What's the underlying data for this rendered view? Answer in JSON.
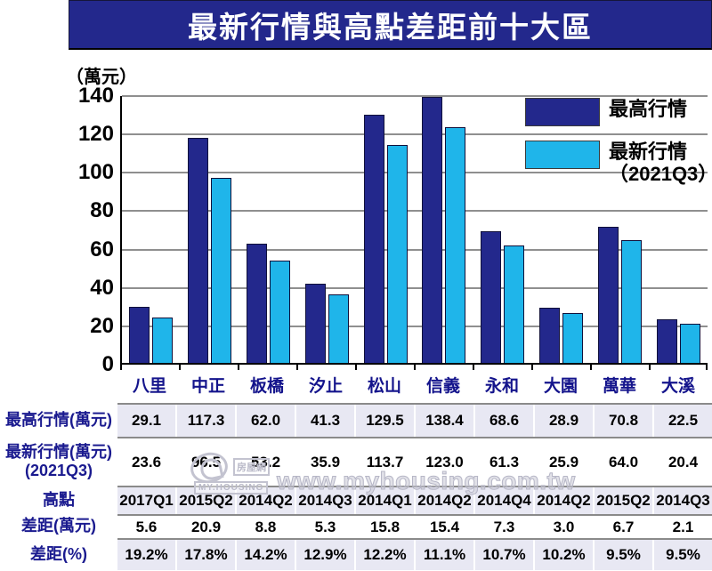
{
  "title": "最新行情與高點差距前十大區",
  "y_axis_unit": "（萬元）",
  "colors": {
    "banner": "#23288C",
    "series_high": "#23288C",
    "series_latest": "#1FB5EA",
    "table_shaded": "#E8E8F3",
    "grid": "#8f8f8f",
    "label_navy": "#1A1A8F"
  },
  "legend": {
    "items": [
      {
        "label": "最高行情",
        "sublabel": "",
        "color": "#23288C"
      },
      {
        "label": "最新行情",
        "sublabel": "（2021Q3）",
        "color": "#1FB5EA"
      }
    ]
  },
  "chart_data": {
    "type": "bar",
    "title": "最新行情與高點差距前十大區",
    "ylabel": "（萬元）",
    "categories": [
      "八里",
      "中正",
      "板橋",
      "汐止",
      "松山",
      "信義",
      "永和",
      "大園",
      "萬華",
      "大溪"
    ],
    "series": [
      {
        "name": "最高行情",
        "color": "#23288C",
        "values": [
          29.1,
          117.3,
          62.0,
          41.3,
          129.5,
          138.4,
          68.6,
          28.9,
          70.8,
          22.5
        ]
      },
      {
        "name": "最新行情（2021Q3）",
        "color": "#1FB5EA",
        "values": [
          23.6,
          96.5,
          53.2,
          35.9,
          113.7,
          123.0,
          61.3,
          25.9,
          64.0,
          20.4
        ]
      }
    ],
    "ylim": [
      0,
      140
    ],
    "yticks": [
      0,
      20,
      40,
      60,
      80,
      100,
      120,
      140
    ],
    "grid": true,
    "legend_position": "top-right"
  },
  "table": {
    "rows": [
      {
        "label": "最高行情(萬元)",
        "label2": "",
        "shaded": true,
        "height": 38,
        "values": [
          "29.1",
          "117.3",
          "62.0",
          "41.3",
          "129.5",
          "138.4",
          "68.6",
          "28.9",
          "70.8",
          "22.5"
        ]
      },
      {
        "label": "最新行情(萬元)",
        "label2": "(2021Q3)",
        "shaded": false,
        "height": 55,
        "values": [
          "23.6",
          "96.5",
          "53.2",
          "35.9",
          "113.7",
          "123.0",
          "61.3",
          "25.9",
          "64.0",
          "20.4"
        ]
      },
      {
        "label": "高點",
        "label2": "",
        "shaded": true,
        "height": 32,
        "values": [
          "2017Q1",
          "2015Q2",
          "2014Q2",
          "2014Q3",
          "2014Q1",
          "2014Q2",
          "2014Q4",
          "2014Q2",
          "2015Q2",
          "2014Q3"
        ]
      },
      {
        "label": "差距(萬元)",
        "label2": "",
        "shaded": false,
        "height": 27,
        "values": [
          "5.6",
          "20.9",
          "8.8",
          "5.3",
          "15.8",
          "15.4",
          "7.3",
          "3.0",
          "6.7",
          "2.1"
        ]
      },
      {
        "label": "差距(%)",
        "label2": "",
        "shaded": true,
        "height": 36,
        "values": [
          "19.2%",
          "17.8%",
          "14.2%",
          "12.9%",
          "12.2%",
          "11.1%",
          "10.7%",
          "10.2%",
          "9.5%",
          "9.5%"
        ]
      }
    ]
  },
  "watermark": {
    "logo_tag": "房屋網",
    "logo_strip": "MY.HOUSING",
    "url": "www.myhousing.com.tw"
  }
}
